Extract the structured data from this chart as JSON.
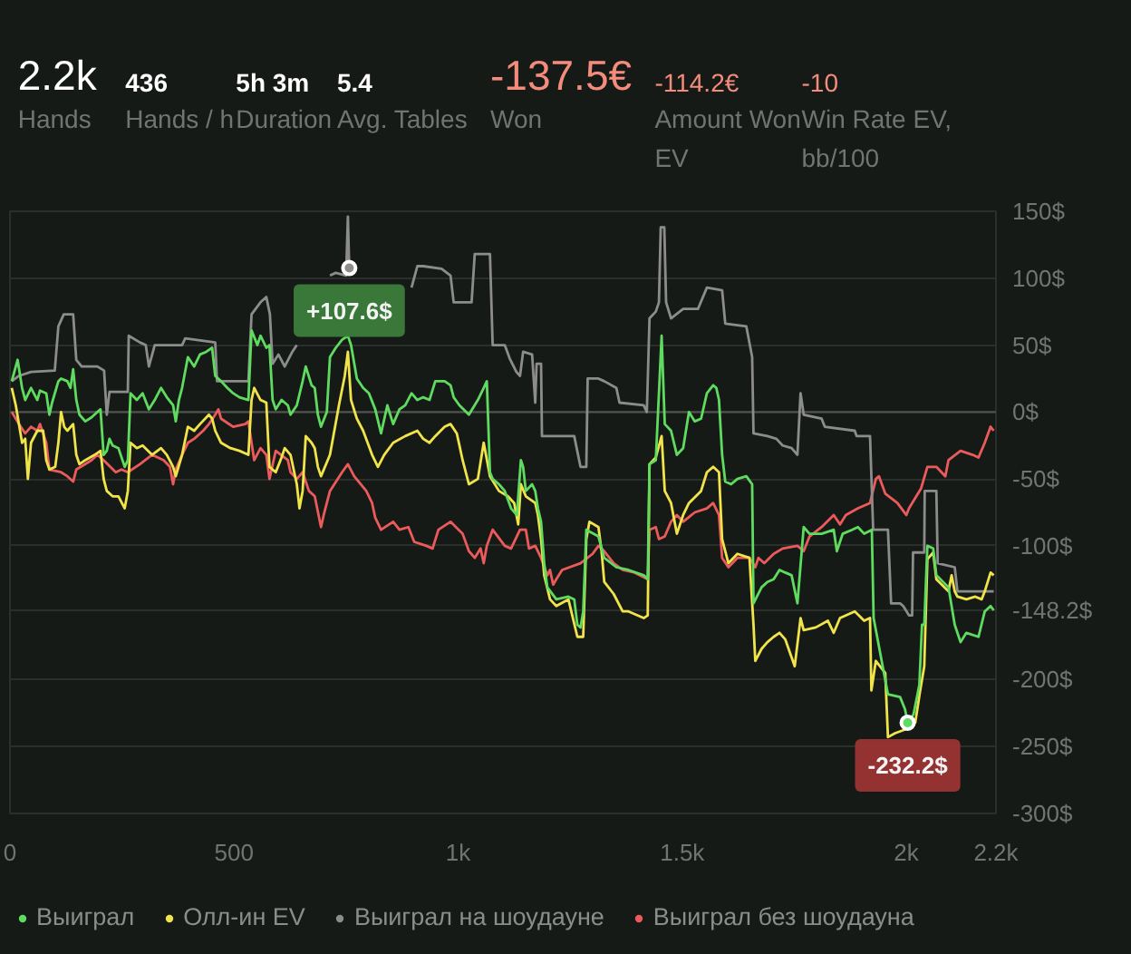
{
  "chart_data": [
    {
      "type": "other",
      "annotations": [
        "2.2k",
        "Hands",
        "436",
        "Hands / h",
        "5h 3m",
        "Duration",
        "5.4",
        "Avg. Tables",
        "-137.5€",
        "Won",
        "-114.2€",
        "Amount Won EV",
        "-10",
        "Win Rate EV, bb/100"
      ],
      "colors": [
        "#ffffff",
        "#ffffff",
        "#ffffff",
        "#ffffff",
        "#f48c7c",
        "#f48c7c",
        "#f48c7c"
      ]
    },
    {
      "type": "line",
      "xlim": [
        0,
        2200
      ],
      "ylim": [
        -300,
        150
      ],
      "xticks": [
        0,
        500,
        {
          "value": 1000,
          "label": "1k"
        },
        {
          "value": 1500,
          "label": "1.5k"
        },
        {
          "value": 2000,
          "label": "2k"
        },
        {
          "value": 2200,
          "label": "2.2k"
        }
      ],
      "yticks": [
        {
          "value": 150,
          "label": "150$"
        },
        {
          "value": 100,
          "label": "100$"
        },
        {
          "value": 50,
          "label": "50$"
        },
        {
          "value": 0,
          "label": "0$"
        },
        {
          "value": -50,
          "label": "-50$"
        },
        {
          "value": -100,
          "label": "-100$"
        },
        {
          "value": -148.2,
          "label": "-148.2$"
        },
        {
          "value": -200,
          "label": "-200$"
        },
        {
          "value": -250,
          "label": "-250$"
        },
        {
          "value": -300,
          "label": "-300$"
        }
      ],
      "grid": "y",
      "legend": "bottom",
      "ref_lines": [
        {
          "axis": "y",
          "value": 0,
          "color": "#50554f"
        }
      ],
      "annotations": [
        {
          "text": "+107.6$",
          "x": 757,
          "y": 107.6
        },
        {
          "text": "-232.2$",
          "x": 2003,
          "y": -232.2
        }
      ],
      "series": [
        {
          "name": "Выиграл",
          "color": "#5fdc5f",
          "x": [
            4,
            17,
            27,
            34,
            47,
            61,
            67,
            81,
            88,
            94,
            108,
            114,
            128,
            135,
            141,
            148,
            155,
            168,
            182,
            195,
            202,
            209,
            216,
            222,
            229,
            242,
            256,
            263,
            269,
            283,
            296,
            310,
            323,
            337,
            350,
            364,
            370,
            377,
            384,
            397,
            411,
            424,
            438,
            451,
            458,
            471,
            485,
            498,
            512,
            532,
            539,
            552,
            559,
            572,
            579,
            586,
            593,
            606,
            620,
            626,
            640,
            653,
            660,
            673,
            680,
            687,
            694,
            707,
            714,
            727,
            741,
            754,
            761,
            774,
            788,
            801,
            815,
            828,
            842,
            855,
            869,
            882,
            896,
            909,
            922,
            936,
            949,
            970,
            983,
            990,
            1003,
            1024,
            1044,
            1057,
            1064,
            1071,
            1077,
            1091,
            1104,
            1118,
            1131,
            1140,
            1145,
            1151,
            1165,
            1172,
            1178,
            1185,
            1192,
            1199,
            1219,
            1246,
            1259,
            1266,
            1273,
            1279,
            1286,
            1313,
            1326,
            1353,
            1380,
            1414,
            1423,
            1427,
            1441,
            1454,
            1461,
            1475,
            1488,
            1502,
            1515,
            1528,
            1542,
            1555,
            1569,
            1576,
            1582,
            1589,
            1596,
            1609,
            1623,
            1643,
            1656,
            1659,
            1677,
            1690,
            1704,
            1717,
            1730,
            1744,
            1757,
            1771,
            1784,
            1811,
            1838,
            1845,
            1858,
            1879,
            1892,
            1906,
            1923,
            1927,
            1959,
            1986,
            1997,
            2003,
            2016,
            2029,
            2035,
            2040,
            2047,
            2060,
            2067,
            2094,
            2108,
            2121,
            2134,
            2161,
            2175,
            2188,
            2195
          ],
          "values": [
            23,
            39,
            18,
            9,
            18,
            9,
            16,
            14,
            -2,
            7,
            23,
            25,
            23,
            18,
            32,
            9,
            -2,
            -7,
            -4,
            0,
            2,
            -32,
            -29,
            -20,
            -25,
            -27,
            -41,
            -36,
            14,
            9,
            14,
            2,
            9,
            18,
            11,
            5,
            -7,
            9,
            18,
            41,
            34,
            43,
            45,
            48,
            27,
            23,
            18,
            14,
            11,
            9,
            61,
            50,
            57,
            48,
            50,
            9,
            2,
            9,
            5,
            -2,
            5,
            23,
            34,
            20,
            18,
            -2,
            -11,
            0,
            41,
            48,
            54,
            57,
            50,
            25,
            18,
            14,
            2,
            -16,
            5,
            -9,
            2,
            5,
            14,
            9,
            11,
            9,
            23,
            23,
            20,
            11,
            5,
            -2,
            9,
            18,
            23,
            -45,
            -50,
            -54,
            -59,
            -72,
            -77,
            -36,
            -41,
            -59,
            -54,
            -59,
            -72,
            -82,
            -113,
            -131,
            -140,
            -138,
            -140,
            -159,
            -161,
            -149,
            -88,
            -93,
            -109,
            -116,
            -118,
            -122,
            -125,
            -39,
            -36,
            57,
            -9,
            -14,
            -32,
            -27,
            0,
            -7,
            -5,
            14,
            20,
            18,
            9,
            -32,
            -52,
            -54,
            -50,
            -48,
            -54,
            -143,
            -131,
            -127,
            -125,
            -118,
            -120,
            -122,
            -143,
            -86,
            -91,
            -91,
            -88,
            -104,
            -91,
            -88,
            -86,
            -91,
            -88,
            -154,
            -211,
            -213,
            -222,
            -232.2,
            -226,
            -204,
            -159,
            -159,
            -100,
            -102,
            -122,
            -131,
            -159,
            -172,
            -165,
            -168,
            -149,
            -145,
            -148.2
          ]
        },
        {
          "name": "Олл-ин EV",
          "color": "#f0e44a",
          "x": [
            4,
            13,
            27,
            34,
            40,
            47,
            61,
            74,
            81,
            88,
            101,
            108,
            114,
            121,
            128,
            141,
            148,
            155,
            168,
            189,
            202,
            209,
            216,
            229,
            242,
            256,
            263,
            269,
            283,
            296,
            317,
            337,
            350,
            364,
            370,
            384,
            397,
            411,
            424,
            444,
            451,
            458,
            471,
            492,
            512,
            532,
            539,
            545,
            559,
            572,
            579,
            593,
            606,
            613,
            626,
            640,
            646,
            653,
            660,
            673,
            680,
            687,
            694,
            714,
            734,
            747,
            754,
            761,
            774,
            788,
            808,
            821,
            835,
            855,
            882,
            909,
            922,
            936,
            949,
            970,
            983,
            997,
            1010,
            1024,
            1044,
            1057,
            1071,
            1091,
            1111,
            1125,
            1134,
            1140,
            1151,
            1172,
            1178,
            1185,
            1192,
            1205,
            1219,
            1246,
            1266,
            1279,
            1286,
            1293,
            1313,
            1320,
            1326,
            1347,
            1367,
            1380,
            1414,
            1423,
            1427,
            1441,
            1454,
            1461,
            1475,
            1488,
            1502,
            1515,
            1542,
            1555,
            1569,
            1582,
            1589,
            1603,
            1623,
            1650,
            1659,
            1663,
            1677,
            1690,
            1704,
            1717,
            1730,
            1751,
            1764,
            1771,
            1798,
            1825,
            1838,
            1852,
            1885,
            1906,
            1919,
            1922,
            1932,
            1953,
            1959,
            1975,
            2000,
            2020,
            2030,
            2040,
            2047,
            2060,
            2067,
            2094,
            2101,
            2108,
            2114,
            2134,
            2154,
            2168,
            2175,
            2188,
            2195
          ],
          "values": [
            18,
            5,
            -23,
            -20,
            -50,
            -23,
            -14,
            -14,
            -36,
            -43,
            -41,
            -23,
            0,
            -11,
            -14,
            -9,
            -32,
            -39,
            -36,
            -32,
            -29,
            -50,
            -59,
            -63,
            -63,
            -72,
            -59,
            -23,
            -27,
            -25,
            -32,
            -27,
            -32,
            -41,
            -48,
            -32,
            -11,
            -14,
            -9,
            -2,
            -5,
            -14,
            -23,
            -27,
            -29,
            -32,
            9,
            18,
            9,
            7,
            -41,
            -45,
            -34,
            -27,
            -32,
            -54,
            -72,
            -59,
            -18,
            -23,
            -27,
            -41,
            -48,
            -32,
            5,
            27,
            45,
            9,
            -5,
            -14,
            -32,
            -41,
            -32,
            -23,
            -18,
            -14,
            -20,
            -23,
            -18,
            -11,
            -9,
            -16,
            -36,
            -54,
            -50,
            -23,
            -48,
            -59,
            -63,
            -68,
            -84,
            -54,
            -63,
            -68,
            -77,
            -95,
            -122,
            -140,
            -145,
            -140,
            -168,
            -168,
            -95,
            -82,
            -86,
            -104,
            -127,
            -136,
            -149,
            -149,
            -154,
            -152,
            -39,
            -34,
            -18,
            -59,
            -68,
            -91,
            -77,
            -68,
            -59,
            -45,
            -41,
            -45,
            -95,
            -113,
            -106,
            -109,
            -159,
            -186,
            -177,
            -172,
            -168,
            -165,
            -170,
            -190,
            -154,
            -163,
            -161,
            -156,
            -165,
            -154,
            -149,
            -156,
            -154,
            -208,
            -186,
            -195,
            -243,
            -240,
            -237,
            -232,
            -210,
            -190,
            -110,
            -105,
            -125,
            -134,
            -122,
            -134,
            -138,
            -140,
            -138,
            -140,
            -134,
            -120,
            -122
          ]
        },
        {
          "name": "Выиграл на шоудауне",
          "color": "#8c8c8c",
          "x": [
            4,
            20,
            47,
            100,
            108,
            120,
            141,
            148,
            160,
            195,
            210,
            216,
            222,
            263,
            265,
            290,
            303,
            310,
            323,
            384,
            391,
            458,
            462,
            532,
            539,
            559,
            572,
            580,
            586,
            599,
            613,
            630,
            640,
            653,
            667,
            694,
            714,
            727,
            750,
            754,
            757,
            761,
            788,
            815,
            842,
            896,
            909,
            922,
            963,
            983,
            990,
            1030,
            1037,
            1071,
            1077,
            1104,
            1115,
            1130,
            1138,
            1145,
            1165,
            1172,
            1175,
            1185,
            1187,
            1259,
            1273,
            1286,
            1289,
            1313,
            1326,
            1353,
            1360,
            1414,
            1421,
            1427,
            1441,
            1448,
            1452,
            1460,
            1464,
            1475,
            1502,
            1535,
            1555,
            1589,
            1596,
            1643,
            1656,
            1659,
            1690,
            1710,
            1724,
            1744,
            1757,
            1764,
            1771,
            1811,
            1818,
            1885,
            1889,
            1919,
            1926,
            1959,
            1966,
            1986,
            1993,
            2006,
            2013,
            2015,
            2040,
            2041,
            2067,
            2070,
            2108,
            2114,
            2195
          ],
          "values": [
            23,
            27,
            30,
            31,
            64,
            73,
            73,
            39,
            34,
            34,
            31,
            -2,
            15,
            15,
            57,
            52,
            50,
            34,
            50,
            50,
            55,
            52,
            23,
            23,
            73,
            82,
            86,
            73,
            36,
            43,
            34,
            45,
            50,
            null,
            null,
            null,
            102,
            104,
            102,
            146,
            107.6,
            null,
            null,
            null,
            null,
            93,
            109,
            109,
            107,
            102,
            82,
            82,
            118,
            118,
            50,
            50,
            40,
            30,
            27,
            45,
            43,
            7,
            36,
            36,
            -18,
            -18,
            -41,
            -41,
            25,
            25,
            23,
            18,
            7,
            5,
            0,
            70,
            75,
            82,
            138,
            138,
            82,
            70,
            77,
            77,
            93,
            91,
            66,
            64,
            41,
            -16,
            -18,
            -20,
            -25,
            -27,
            -32,
            14,
            -2,
            -5,
            -11,
            -14,
            -18,
            -18,
            -88,
            -88,
            -143,
            -143,
            -145,
            -152,
            -152,
            -105,
            -105,
            -59,
            -59,
            -113,
            -116,
            -134,
            -134
          ]
        },
        {
          "name": "Выиграл без шоудауна",
          "color": "#ec5b5b",
          "x": [
            4,
            20,
            34,
            47,
            61,
            67,
            81,
            88,
            114,
            128,
            141,
            148,
            182,
            195,
            209,
            236,
            249,
            263,
            290,
            317,
            343,
            357,
            364,
            370,
            384,
            397,
            411,
            431,
            444,
            458,
            465,
            471,
            498,
            525,
            532,
            539,
            545,
            559,
            572,
            579,
            593,
            620,
            626,
            640,
            653,
            667,
            680,
            694,
            700,
            714,
            741,
            754,
            768,
            795,
            808,
            815,
            828,
            855,
            869,
            889,
            902,
            929,
            943,
            956,
            983,
            1010,
            1024,
            1037,
            1050,
            1057,
            1064,
            1077,
            1104,
            1118,
            1138,
            1151,
            1158,
            1172,
            1185,
            1199,
            1205,
            1212,
            1219,
            1232,
            1273,
            1300,
            1313,
            1326,
            1347,
            1367,
            1394,
            1423,
            1427,
            1441,
            1448,
            1461,
            1475,
            1488,
            1502,
            1528,
            1555,
            1569,
            1582,
            1589,
            1603,
            1623,
            1650,
            1663,
            1670,
            1683,
            1704,
            1724,
            1757,
            1771,
            1784,
            1811,
            1838,
            1852,
            1865,
            1892,
            1919,
            1932,
            1939,
            1953,
            1980,
            2000,
            2006,
            2033,
            2047,
            2067,
            2087,
            2094,
            2121,
            2148,
            2161,
            2175,
            2188,
            2195
          ],
          "values": [
            0,
            -9,
            -16,
            -11,
            -14,
            -9,
            -23,
            -43,
            -45,
            -48,
            -52,
            -43,
            -36,
            -32,
            -36,
            -45,
            -43,
            -45,
            -39,
            -32,
            -36,
            -41,
            -54,
            -43,
            -32,
            -23,
            -20,
            -14,
            -9,
            -2,
            2,
            -5,
            -11,
            -9,
            -7,
            -23,
            -36,
            -27,
            -32,
            -50,
            -29,
            -36,
            -45,
            -50,
            -45,
            -59,
            -63,
            -86,
            -77,
            -59,
            -45,
            -39,
            -48,
            -59,
            -68,
            -79,
            -88,
            -82,
            -88,
            -86,
            -97,
            -100,
            -102,
            -88,
            -82,
            -91,
            -104,
            -109,
            -102,
            -113,
            -100,
            -88,
            -100,
            -102,
            -88,
            -88,
            -102,
            -100,
            -109,
            -122,
            -118,
            -129,
            -125,
            -118,
            -113,
            -106,
            -100,
            -104,
            -113,
            -118,
            -120,
            -125,
            -88,
            -86,
            -95,
            -93,
            -82,
            -77,
            -82,
            -75,
            -72,
            -68,
            -77,
            -109,
            -116,
            -109,
            -109,
            -116,
            -109,
            -113,
            -106,
            -102,
            -100,
            -104,
            -93,
            -86,
            -77,
            -84,
            -77,
            -72,
            -68,
            -50,
            -48,
            -61,
            -68,
            -77,
            -72,
            -57,
            -41,
            -41,
            -48,
            -36,
            -29,
            -32,
            -34,
            -23,
            -11,
            -14
          ]
        }
      ]
    }
  ]
}
